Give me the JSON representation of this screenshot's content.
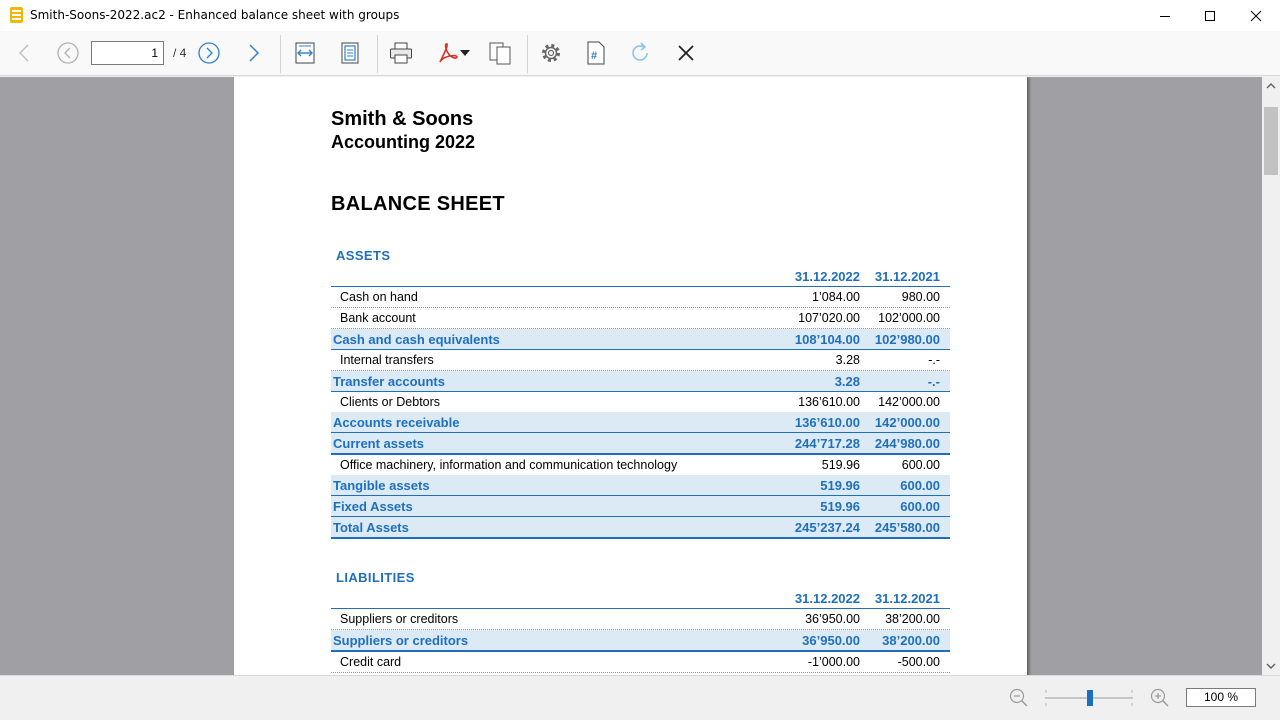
{
  "window": {
    "title": "Smith-Soons-2022.ac2 - Enhanced balance sheet with groups"
  },
  "toolbar": {
    "page_current": "1",
    "page_total": "/ 4"
  },
  "status": {
    "zoom": "100 %"
  },
  "document": {
    "company": "Smith & Soons",
    "subtitle": "Accounting 2022",
    "title": "BALANCE SHEET",
    "assets": {
      "heading": "ASSETS",
      "col1": "31.12.2022",
      "col2": "31.12.2021",
      "rows": [
        {
          "label": "Cash on hand",
          "v1": "1’084.00",
          "v2": "980.00"
        },
        {
          "label": "Bank account",
          "v1": "107’020.00",
          "v2": "102’000.00"
        },
        {
          "label": "Cash and cash equivalents",
          "v1": "108’104.00",
          "v2": "102’980.00"
        },
        {
          "label": "Internal transfers",
          "v1": "3.28",
          "v2": "-.-"
        },
        {
          "label": "Transfer accounts",
          "v1": "3.28",
          "v2": "-.-"
        },
        {
          "label": "Clients or Debtors",
          "v1": "136’610.00",
          "v2": "142’000.00"
        },
        {
          "label": "Accounts receivable",
          "v1": "136’610.00",
          "v2": "142’000.00"
        },
        {
          "label": "Current assets",
          "v1": "244’717.28",
          "v2": "244’980.00"
        },
        {
          "label": "Office machinery, information and communication technology",
          "v1": "519.96",
          "v2": "600.00"
        },
        {
          "label": "Tangible assets",
          "v1": "519.96",
          "v2": "600.00"
        },
        {
          "label": "Fixed Assets",
          "v1": "519.96",
          "v2": "600.00"
        },
        {
          "label": "Total Assets",
          "v1": "245’237.24",
          "v2": "245’580.00"
        }
      ]
    },
    "liabilities": {
      "heading": "LIABILITIES",
      "col1": "31.12.2022",
      "col2": "31.12.2021",
      "rows": [
        {
          "label": "Suppliers or creditors",
          "v1": "36’950.00",
          "v2": "38’200.00"
        },
        {
          "label": "Suppliers or creditors",
          "v1": "36’950.00",
          "v2": "38’200.00"
        },
        {
          "label": "Credit card",
          "v1": "-1’000.00",
          "v2": "-500.00"
        }
      ]
    }
  },
  "colors": {
    "accent": "#1f6fbf",
    "group_bg": "#dceaf5",
    "viewer_bg": "#a0a0a4"
  }
}
